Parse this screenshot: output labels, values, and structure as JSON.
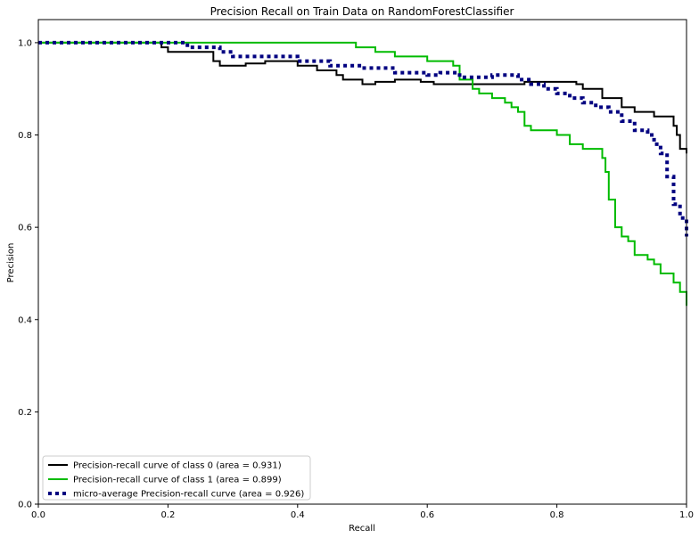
{
  "chart_data": {
    "type": "line",
    "title": "Precision Recall on Train Data on RandomForestClassifier",
    "xlabel": "Recall",
    "ylabel": "Precision",
    "xlim": [
      0,
      1
    ],
    "ylim": [
      0,
      1.05
    ],
    "xticks": [
      "0.0",
      "0.2",
      "0.4",
      "0.6",
      "0.8",
      "1.0"
    ],
    "yticks": [
      "0.0",
      "0.2",
      "0.4",
      "0.6",
      "0.8",
      "1.0"
    ],
    "grid": false,
    "legend_position": "lower-left",
    "series": [
      {
        "name": "Precision-recall curve of class 0 (area = 0.931)",
        "color": "#000000",
        "style": "solid",
        "x": [
          0.0,
          0.19,
          0.19,
          0.2,
          0.26,
          0.27,
          0.28,
          0.3,
          0.32,
          0.35,
          0.38,
          0.4,
          0.43,
          0.46,
          0.47,
          0.5,
          0.52,
          0.55,
          0.59,
          0.61,
          0.65,
          0.7,
          0.75,
          0.8,
          0.83,
          0.84,
          0.85,
          0.87,
          0.89,
          0.9,
          0.92,
          0.94,
          0.95,
          0.96,
          0.98,
          0.985,
          0.99,
          1.0
        ],
        "y": [
          1.0,
          1.0,
          0.99,
          0.98,
          0.98,
          0.96,
          0.95,
          0.95,
          0.955,
          0.96,
          0.96,
          0.95,
          0.94,
          0.93,
          0.92,
          0.91,
          0.915,
          0.92,
          0.915,
          0.91,
          0.91,
          0.91,
          0.915,
          0.915,
          0.91,
          0.9,
          0.9,
          0.88,
          0.88,
          0.86,
          0.85,
          0.85,
          0.84,
          0.84,
          0.82,
          0.8,
          0.77,
          0.76
        ]
      },
      {
        "name": "Precision-recall curve of class 1 (area = 0.899)",
        "color": "#00bb00",
        "style": "solid",
        "x": [
          0.0,
          0.48,
          0.49,
          0.52,
          0.55,
          0.59,
          0.6,
          0.64,
          0.65,
          0.67,
          0.68,
          0.7,
          0.72,
          0.73,
          0.74,
          0.75,
          0.76,
          0.79,
          0.8,
          0.82,
          0.84,
          0.87,
          0.875,
          0.88,
          0.89,
          0.9,
          0.91,
          0.92,
          0.94,
          0.95,
          0.96,
          0.97,
          0.98,
          0.99,
          1.0
        ],
        "y": [
          1.0,
          1.0,
          0.99,
          0.98,
          0.97,
          0.97,
          0.96,
          0.95,
          0.92,
          0.9,
          0.89,
          0.88,
          0.87,
          0.86,
          0.85,
          0.82,
          0.81,
          0.81,
          0.8,
          0.78,
          0.77,
          0.75,
          0.72,
          0.66,
          0.6,
          0.58,
          0.57,
          0.54,
          0.53,
          0.52,
          0.5,
          0.5,
          0.48,
          0.46,
          0.43
        ]
      },
      {
        "name": "micro-average Precision-recall curve (area = 0.926)",
        "color": "#000080",
        "style": "dotted",
        "x": [
          0.0,
          0.22,
          0.23,
          0.26,
          0.28,
          0.3,
          0.33,
          0.36,
          0.4,
          0.45,
          0.5,
          0.55,
          0.6,
          0.62,
          0.65,
          0.7,
          0.72,
          0.74,
          0.76,
          0.78,
          0.8,
          0.82,
          0.84,
          0.86,
          0.88,
          0.9,
          0.92,
          0.94,
          0.95,
          0.96,
          0.97,
          0.98,
          0.99,
          1.0
        ],
        "y": [
          1.0,
          1.0,
          0.99,
          0.99,
          0.98,
          0.97,
          0.97,
          0.97,
          0.96,
          0.95,
          0.945,
          0.935,
          0.93,
          0.935,
          0.925,
          0.93,
          0.93,
          0.92,
          0.91,
          0.9,
          0.89,
          0.88,
          0.87,
          0.86,
          0.85,
          0.83,
          0.81,
          0.8,
          0.78,
          0.76,
          0.71,
          0.65,
          0.62,
          0.58
        ]
      }
    ]
  }
}
